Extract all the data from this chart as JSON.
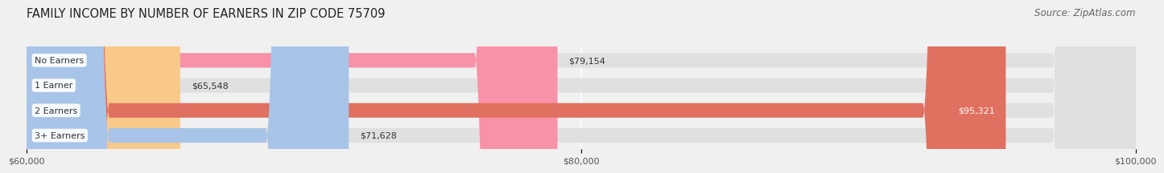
{
  "title": "FAMILY INCOME BY NUMBER OF EARNERS IN ZIP CODE 75709",
  "source": "Source: ZipAtlas.com",
  "categories": [
    "No Earners",
    "1 Earner",
    "2 Earners",
    "3+ Earners"
  ],
  "values": [
    79154,
    65548,
    95321,
    71628
  ],
  "bar_colors": [
    "#F892A8",
    "#F9C98A",
    "#E07060",
    "#A8C4E8"
  ],
  "xlim": [
    60000,
    100000
  ],
  "xticks": [
    60000,
    80000,
    100000
  ],
  "xtick_labels": [
    "$60,000",
    "$80,000",
    "$100,000"
  ],
  "value_labels": [
    "$79,154",
    "$65,548",
    "$95,321",
    "$71,628"
  ],
  "label_inside": [
    false,
    false,
    true,
    false
  ],
  "bg_color": "#F0F0F0",
  "bar_bg_color": "#E0E0E0",
  "title_fontsize": 10.5,
  "source_fontsize": 8.5,
  "bar_height": 0.58
}
